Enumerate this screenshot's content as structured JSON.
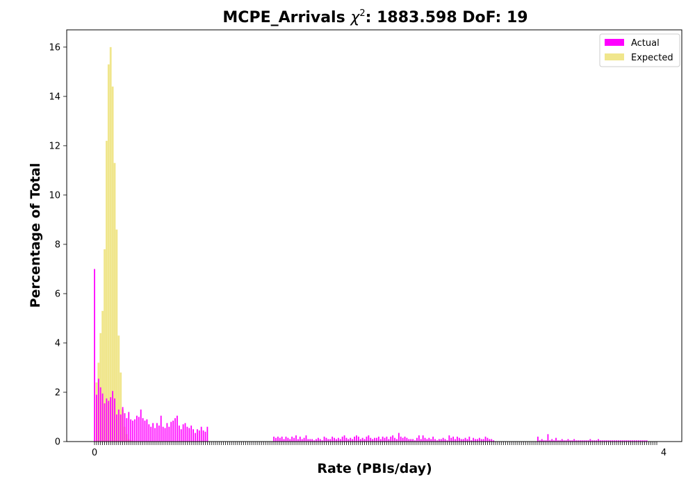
{
  "chart_data": {
    "type": "bar",
    "title_prefix": "MCPE_Arrivals ",
    "title_chi": "χ",
    "title_sup": "2",
    "title_suffix": ": 1883.598 DoF: 19",
    "xlabel": "Rate (PBIs/day)",
    "ylabel": "Percentage of Total",
    "ylim": [
      0,
      16.7
    ],
    "yticks": [
      0,
      2,
      4,
      6,
      8,
      10,
      12,
      14,
      16
    ],
    "x_tick_first": "0",
    "x_tick_last": "4",
    "legend_position": "top-right",
    "grid": false,
    "n_categories": 280,
    "series": [
      {
        "name": "Actual",
        "color": "#ff00ff",
        "values": [
          7.0,
          1.9,
          2.55,
          2.2,
          1.95,
          1.55,
          1.75,
          1.65,
          1.8,
          2.05,
          1.75,
          1.1,
          1.3,
          1.1,
          1.4,
          1.15,
          0.95,
          1.2,
          0.9,
          0.85,
          0.9,
          1.05,
          1.0,
          1.3,
          0.95,
          0.85,
          0.9,
          0.7,
          0.6,
          0.75,
          0.55,
          0.75,
          0.65,
          1.05,
          0.6,
          0.55,
          0.75,
          0.6,
          0.8,
          0.85,
          0.95,
          1.05,
          0.65,
          0.5,
          0.7,
          0.75,
          0.6,
          0.55,
          0.65,
          0.5,
          0.35,
          0.5,
          0.45,
          0.6,
          0.45,
          0.4,
          0.6,
          0.0,
          0.0,
          0.0,
          0.0,
          0.0,
          0.0,
          0.0,
          0.0,
          0.0,
          0.0,
          0.0,
          0.0,
          0.0,
          0.0,
          0.0,
          0.0,
          0.0,
          0.0,
          0.0,
          0.0,
          0.0,
          0.0,
          0.0,
          0.0,
          0.0,
          0.0,
          0.0,
          0.0,
          0.0,
          0.0,
          0.0,
          0.0,
          0.2,
          0.15,
          0.2,
          0.15,
          0.2,
          0.1,
          0.2,
          0.15,
          0.1,
          0.2,
          0.15,
          0.25,
          0.1,
          0.2,
          0.1,
          0.15,
          0.25,
          0.1,
          0.1,
          0.1,
          0.05,
          0.1,
          0.15,
          0.1,
          0.05,
          0.2,
          0.15,
          0.1,
          0.1,
          0.2,
          0.15,
          0.1,
          0.15,
          0.1,
          0.2,
          0.25,
          0.15,
          0.1,
          0.15,
          0.1,
          0.2,
          0.25,
          0.2,
          0.1,
          0.15,
          0.1,
          0.2,
          0.25,
          0.15,
          0.1,
          0.15,
          0.15,
          0.2,
          0.1,
          0.2,
          0.15,
          0.2,
          0.1,
          0.2,
          0.25,
          0.15,
          0.1,
          0.35,
          0.2,
          0.15,
          0.2,
          0.15,
          0.1,
          0.1,
          0.1,
          0.05,
          0.15,
          0.25,
          0.1,
          0.25,
          0.15,
          0.1,
          0.15,
          0.1,
          0.2,
          0.1,
          0.05,
          0.1,
          0.1,
          0.15,
          0.1,
          0.05,
          0.25,
          0.15,
          0.2,
          0.1,
          0.2,
          0.15,
          0.1,
          0.1,
          0.15,
          0.1,
          0.2,
          0.05,
          0.15,
          0.1,
          0.1,
          0.15,
          0.1,
          0.1,
          0.2,
          0.15,
          0.1,
          0.1,
          0.05,
          0.0,
          0.0,
          0.0,
          0.0,
          0.0,
          0.0,
          0.0,
          0.0,
          0.0,
          0.0,
          0.0,
          0.0,
          0.0,
          0.0,
          0.0,
          0.0,
          0.0,
          0.0,
          0.0,
          0.0,
          0.0,
          0.2,
          0.05,
          0.1,
          0.05,
          0.05,
          0.3,
          0.05,
          0.1,
          0.05,
          0.15,
          0.05,
          0.05,
          0.1,
          0.05,
          0.05,
          0.1,
          0.05,
          0.05,
          0.1,
          0.05,
          0.05,
          0.05,
          0.05,
          0.05,
          0.05,
          0.05,
          0.1,
          0.05,
          0.05,
          0.05,
          0.1,
          0.05,
          0.05,
          0.05,
          0.05,
          0.05,
          0.05,
          0.05,
          0.05,
          0.05,
          0.05,
          0.05,
          0.05,
          0.05,
          0.05,
          0.05,
          0.05,
          0.05,
          0.05,
          0.05,
          0.05,
          0.05,
          0.05,
          0.05,
          0.05
        ]
      },
      {
        "name": "Expected",
        "color": "#f0e68c",
        "values": [
          0.0,
          2.4,
          3.2,
          4.4,
          5.3,
          7.8,
          12.2,
          15.3,
          16.0,
          14.4,
          11.3,
          8.6,
          4.3,
          2.8,
          1.3,
          0.6,
          0.3,
          0.1,
          0.05,
          0.02
        ]
      }
    ]
  }
}
